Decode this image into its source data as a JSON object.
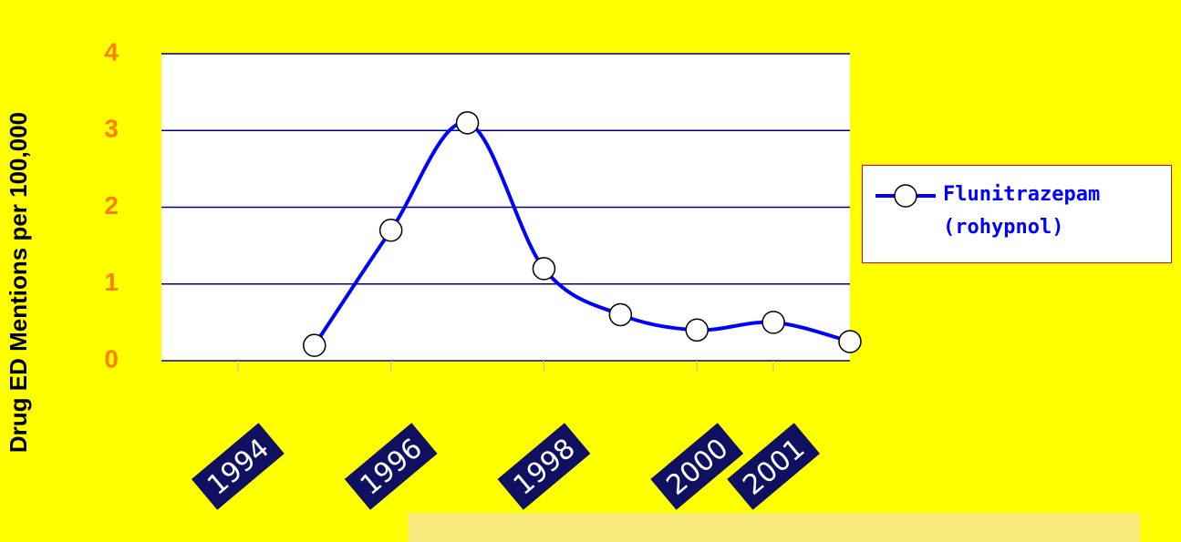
{
  "chart_data": {
    "type": "line",
    "y_label": "Drug ED Mentions per 100,000",
    "x": [
      1995,
      1996,
      1997,
      1998,
      1999,
      2000,
      2001,
      2002
    ],
    "series": [
      {
        "name": "Flunitrazepam (rohypnol)",
        "color": "#0000ff",
        "values": [
          0.2,
          1.7,
          3.1,
          1.2,
          0.6,
          0.4,
          0.5,
          0.25
        ]
      }
    ],
    "xlim": [
      1993,
      2002
    ],
    "xticks": [
      1994,
      1996,
      1998,
      2000,
      2001
    ],
    "ylim": [
      0,
      4
    ],
    "yticks": [
      0,
      1,
      2,
      3,
      4
    ],
    "grid": true
  }
}
